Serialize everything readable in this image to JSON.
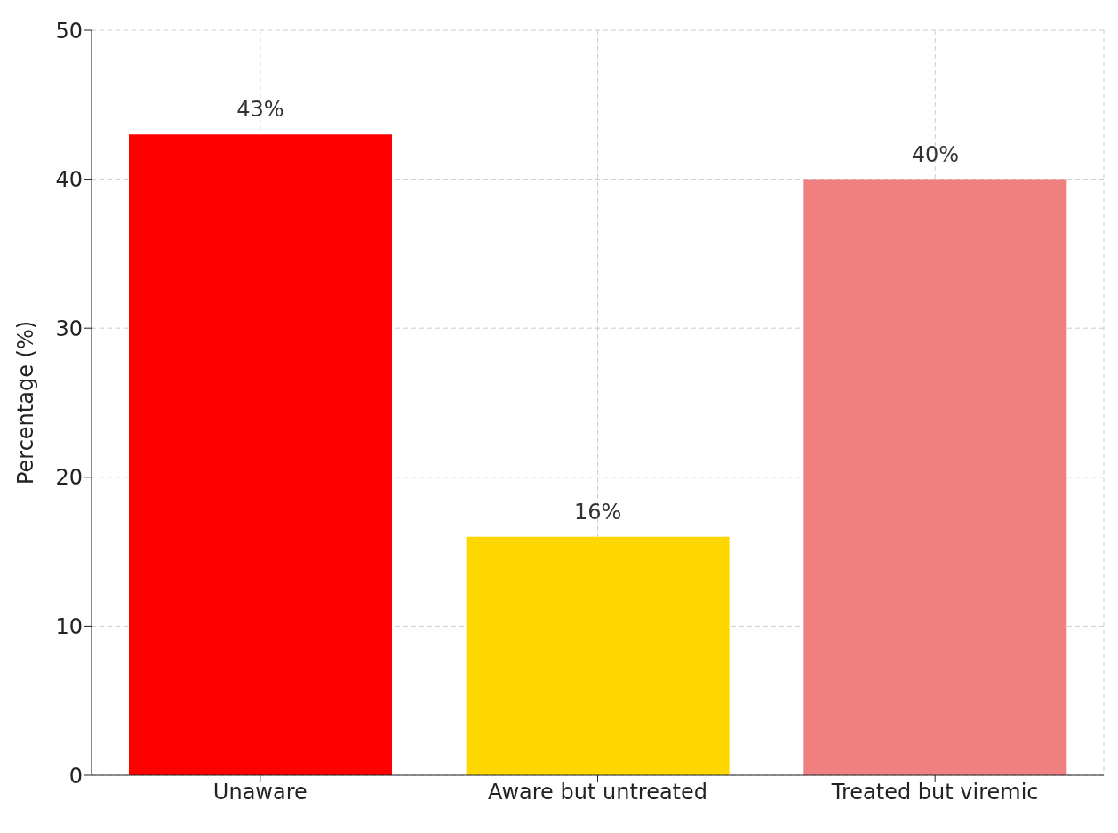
{
  "chart_data": {
    "type": "bar",
    "ylabel": "Percentage (%)",
    "categories": [
      "Unaware",
      "Aware but untreated",
      "Treated but viremic"
    ],
    "values": [
      43,
      16,
      40
    ],
    "colors": [
      "#ff0000",
      "#ffd700",
      "#f08080"
    ],
    "value_labels": [
      "43%",
      "16%",
      "40%"
    ],
    "ylim": [
      0,
      50
    ],
    "yticks": [
      0,
      10,
      20,
      30,
      40,
      50
    ],
    "grid": true
  }
}
